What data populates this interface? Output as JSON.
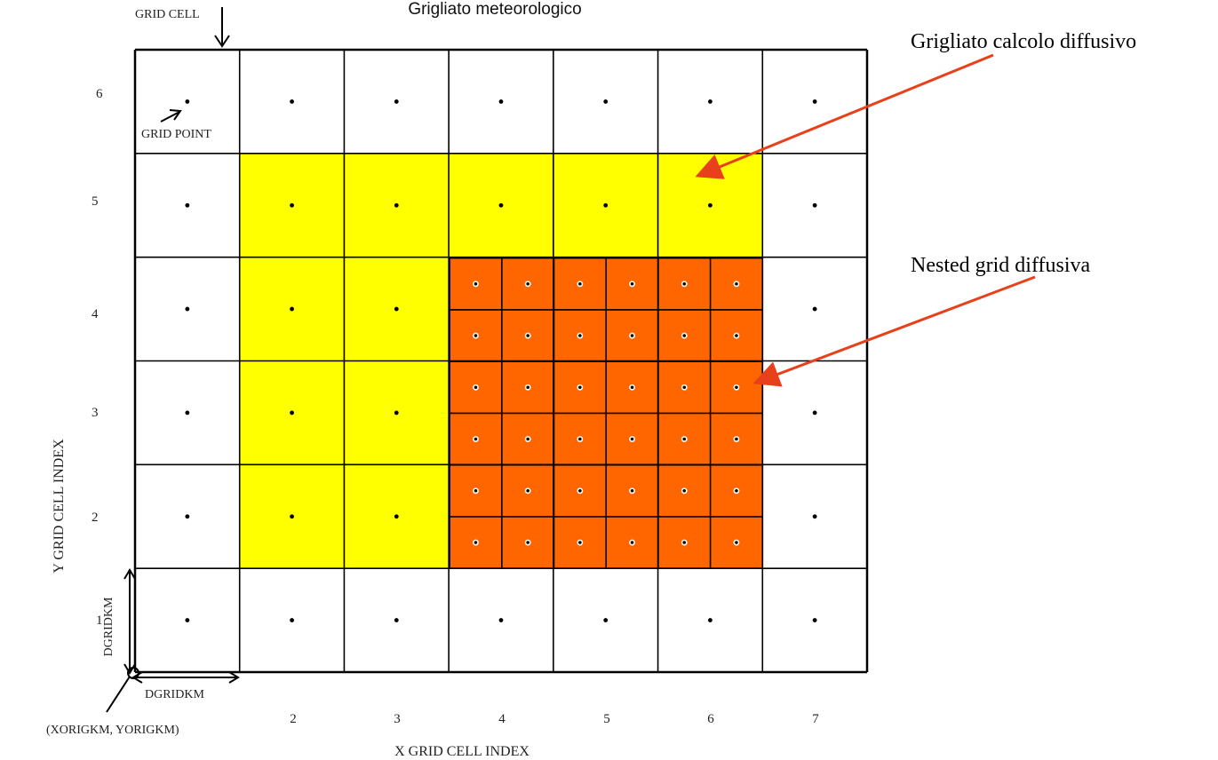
{
  "title": "Grigliato meteorologico",
  "labels": {
    "grid_cell": "GRID CELL",
    "grid_point": "GRID POINT",
    "dgridkm_x": "DGRIDKM",
    "dgridkm_y": "DGRIDKM",
    "origin": "(XORIGKM, YORIGKM)",
    "x_axis": "X GRID CELL INDEX",
    "y_axis": "Y GRID CELL INDEX"
  },
  "callouts": {
    "computational_grid": "Grigliato calcolo diffusivo",
    "nested_grid": "Nested grid diffusiva"
  },
  "x_ticks": [
    "2",
    "3",
    "4",
    "5",
    "6",
    "7"
  ],
  "y_ticks": [
    "1",
    "2",
    "3",
    "4",
    "5",
    "6"
  ],
  "colors": {
    "computational": "#ffff00",
    "nested": "#ff6600",
    "arrow": "#e8401a",
    "line": "#000000"
  },
  "grid": {
    "columns": 7,
    "rows": 6,
    "computational_cells": [
      "2,2",
      "2,3",
      "2,4",
      "2,5",
      "3,2",
      "3,3",
      "3,4",
      "3,5",
      "4,5",
      "5,5",
      "6,5"
    ],
    "nested_region": {
      "x_from": 4,
      "x_to": 6,
      "y_from": 2,
      "y_to": 4,
      "subdivision": 2
    }
  }
}
